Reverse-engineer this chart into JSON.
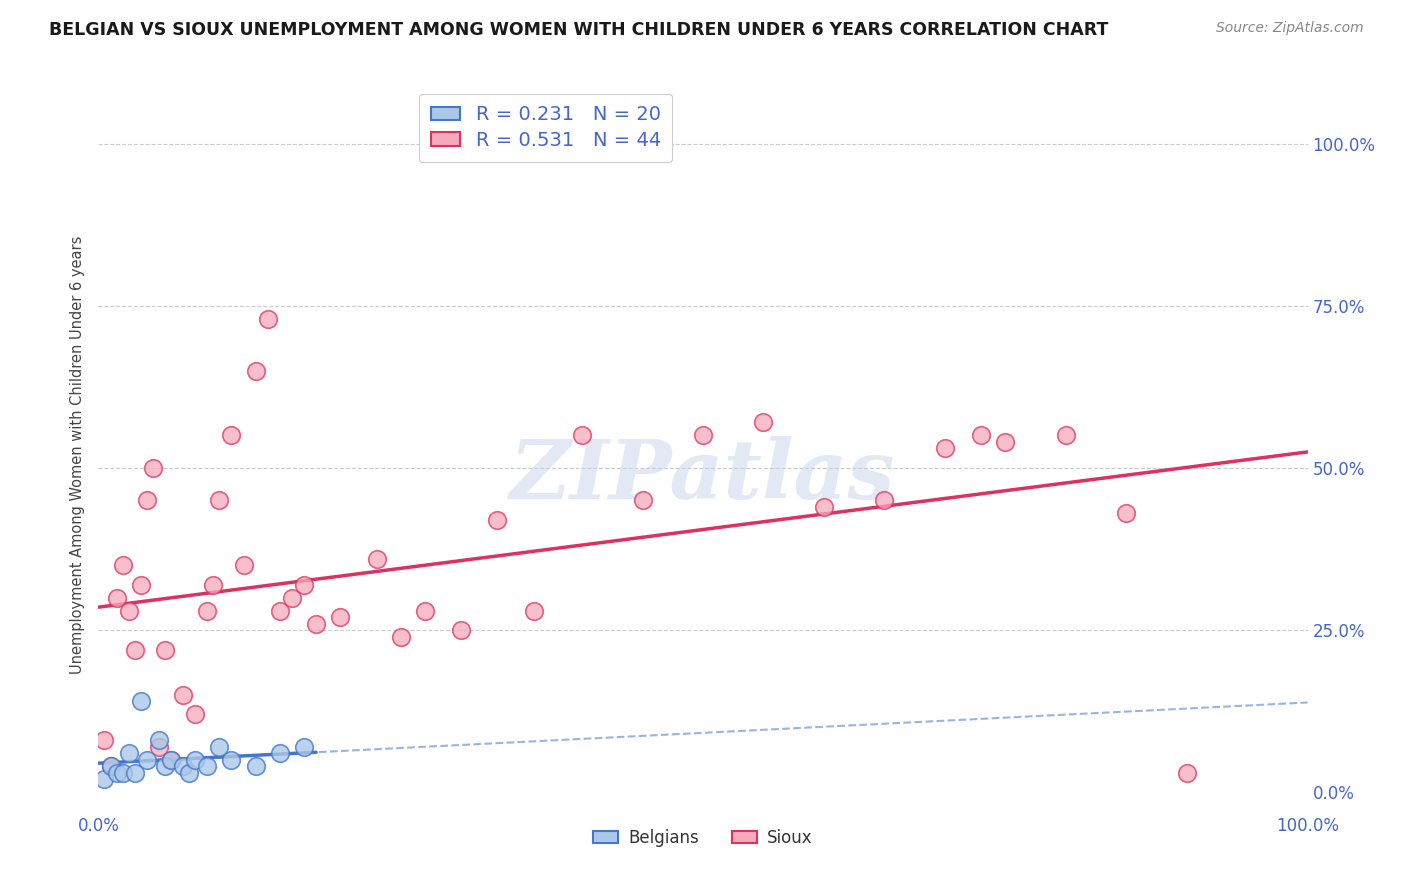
{
  "title": "BELGIAN VS SIOUX UNEMPLOYMENT AMONG WOMEN WITH CHILDREN UNDER 6 YEARS CORRELATION CHART",
  "source": "Source: ZipAtlas.com",
  "ylabel": "Unemployment Among Women with Children Under 6 years",
  "ytick_labels": [
    "0.0%",
    "25.0%",
    "50.0%",
    "75.0%",
    "100.0%"
  ],
  "ytick_values": [
    0,
    25,
    50,
    75,
    100
  ],
  "xtick_labels": [
    "0.0%",
    "100.0%"
  ],
  "xtick_values": [
    0,
    100
  ],
  "legend_belgian": "Belgians",
  "legend_sioux": "Sioux",
  "r_belgian": "0.231",
  "n_belgian": "20",
  "r_sioux": "0.531",
  "n_sioux": "44",
  "belgian_scatter_color": "#aac8e8",
  "sioux_scatter_color": "#f5aabb",
  "belgian_line_color": "#4477cc",
  "sioux_line_color": "#e03060",
  "text_blue": "#4466cc",
  "watermark": "ZIPatlas",
  "belgians_x": [
    0.5,
    1.0,
    1.5,
    2.0,
    2.5,
    3.0,
    3.5,
    4.0,
    5.0,
    5.5,
    6.0,
    7.0,
    7.5,
    8.0,
    9.0,
    10.0,
    11.0,
    13.0,
    15.0,
    17.0
  ],
  "belgians_y": [
    2,
    4,
    3,
    3,
    6,
    3,
    14,
    5,
    8,
    4,
    5,
    4,
    3,
    5,
    4,
    7,
    5,
    4,
    6,
    7
  ],
  "sioux_x": [
    0.5,
    1.0,
    1.5,
    2.0,
    2.5,
    3.0,
    3.5,
    4.0,
    4.5,
    5.0,
    5.5,
    6.0,
    7.0,
    8.0,
    9.0,
    9.5,
    10.0,
    11.0,
    12.0,
    13.0,
    14.0,
    15.0,
    16.0,
    17.0,
    18.0,
    20.0,
    23.0,
    25.0,
    27.0,
    30.0,
    33.0,
    36.0,
    40.0,
    45.0,
    50.0,
    55.0,
    60.0,
    65.0,
    70.0,
    73.0,
    75.0,
    80.0,
    85.0,
    90.0
  ],
  "sioux_y": [
    8,
    4,
    30,
    35,
    28,
    22,
    32,
    45,
    50,
    7,
    22,
    5,
    15,
    12,
    28,
    32,
    45,
    55,
    35,
    65,
    73,
    28,
    30,
    32,
    26,
    27,
    36,
    24,
    28,
    25,
    42,
    28,
    55,
    45,
    55,
    57,
    44,
    45,
    53,
    55,
    54,
    55,
    43,
    3
  ]
}
